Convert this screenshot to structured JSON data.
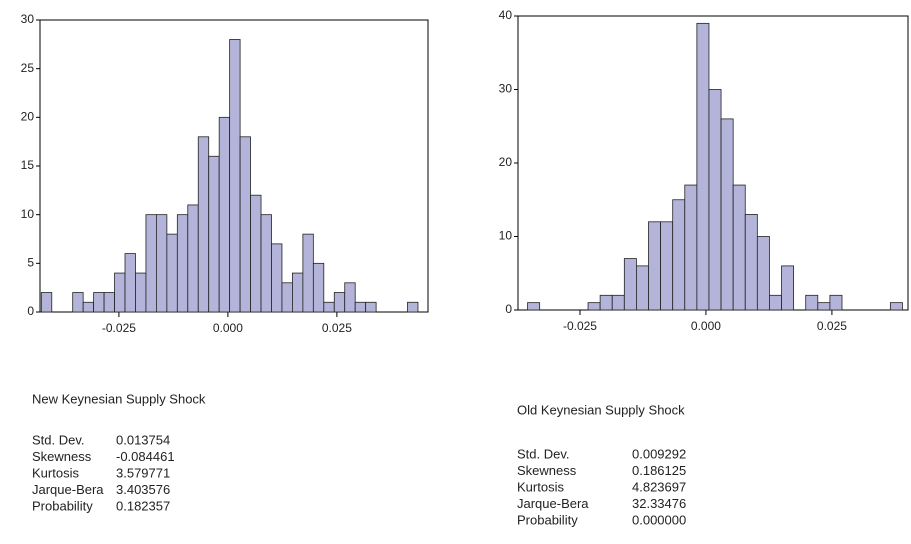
{
  "chart_data": [
    {
      "type": "histogram",
      "title": "New Keynesian Supply Shock",
      "color": "#b4b4da",
      "bins": [
        -0.0428,
        -0.0404,
        -0.038,
        -0.0356,
        -0.0332,
        -0.0308,
        -0.0284,
        -0.026,
        -0.0236,
        -0.0212,
        -0.0188,
        -0.0164,
        -0.014,
        -0.0116,
        -0.0092,
        -0.0068,
        -0.0044,
        -0.002,
        0.0004,
        0.0028,
        0.0052,
        0.0076,
        0.01,
        0.0124,
        0.0148,
        0.0172,
        0.0196,
        0.022,
        0.0244,
        0.0268,
        0.0292,
        0.0316,
        0.034,
        0.0364,
        0.0388,
        0.0412,
        0.0436
      ],
      "values": [
        2,
        0,
        0,
        2,
        1,
        2,
        2,
        4,
        6,
        4,
        10,
        10,
        8,
        10,
        11,
        18,
        16,
        20,
        28,
        18,
        12,
        10,
        7,
        3,
        4,
        8,
        5,
        1,
        2,
        3,
        1,
        1,
        0,
        0,
        0,
        1
      ],
      "xlim": [
        -0.0431,
        0.0459
      ],
      "ylim": [
        0,
        30
      ],
      "xticks": [
        {
          "value": -0.025,
          "label": "-0.025"
        },
        {
          "value": 0,
          "label": "0.000"
        },
        {
          "value": 0.025,
          "label": "0.025"
        }
      ],
      "yticks": [
        0,
        5,
        10,
        15,
        20,
        25,
        30
      ],
      "stats": [
        {
          "label": "Std. Dev.",
          "value": "0.013754"
        },
        {
          "label": "Skewness",
          "value": "-0.084461"
        },
        {
          "label": "Kurtosis",
          "value": "3.579771"
        },
        {
          "label": "Jarque-Bera",
          "value": "3.403576"
        },
        {
          "label": "Probability",
          "value": "0.182357"
        }
      ]
    },
    {
      "type": "histogram",
      "title": "Old Keynesian Supply Shock",
      "color": "#b4b4da",
      "bins": [
        -0.0354,
        -0.033,
        -0.0306,
        -0.0282,
        -0.0258,
        -0.0234,
        -0.021,
        -0.0186,
        -0.0162,
        -0.0138,
        -0.0114,
        -0.009,
        -0.0066,
        -0.0042,
        -0.0018,
        0.0006,
        0.003,
        0.0054,
        0.0078,
        0.0102,
        0.0126,
        0.015,
        0.0174,
        0.0198,
        0.0222,
        0.0246,
        0.027,
        0.0294,
        0.0318,
        0.0342,
        0.0366,
        0.039
      ],
      "values": [
        1,
        0,
        0,
        0,
        0,
        1,
        2,
        2,
        7,
        6,
        12,
        12,
        15,
        17,
        39,
        30,
        26,
        17,
        13,
        10,
        2,
        6,
        0,
        2,
        1,
        2,
        0,
        0,
        0,
        0,
        1
      ],
      "xlim": [
        -0.0373,
        0.0401
      ],
      "ylim": [
        0,
        40
      ],
      "xticks": [
        {
          "value": -0.025,
          "label": "-0.025"
        },
        {
          "value": 0,
          "label": "0.000"
        },
        {
          "value": 0.025,
          "label": "0.025"
        }
      ],
      "yticks": [
        0,
        10,
        20,
        30,
        40
      ],
      "stats": [
        {
          "label": "Std. Dev.",
          "value": "0.009292"
        },
        {
          "label": "Skewness",
          "value": "0.186125"
        },
        {
          "label": "Kurtosis",
          "value": "4.823697"
        },
        {
          "label": "Jarque-Bera",
          "value": "32.33476"
        },
        {
          "label": "Probability",
          "value": "0.000000"
        }
      ]
    }
  ]
}
